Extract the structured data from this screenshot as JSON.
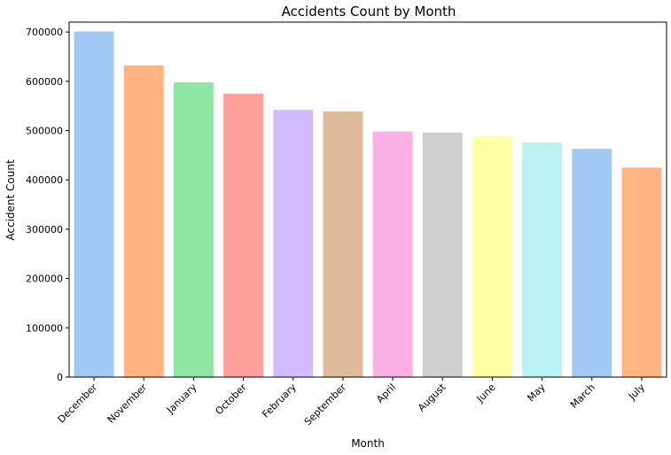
{
  "chart_data": {
    "type": "bar",
    "title": "Accidents Count by Month",
    "xlabel": "Month",
    "ylabel": "Accident Count",
    "categories": [
      "December",
      "November",
      "January",
      "October",
      "February",
      "September",
      "April",
      "August",
      "June",
      "May",
      "March",
      "July"
    ],
    "values": [
      701000,
      632000,
      598000,
      575000,
      542000,
      539000,
      498000,
      496000,
      488000,
      476000,
      463000,
      425000
    ],
    "colors": [
      "#a1c9f4",
      "#ffb482",
      "#8de5a1",
      "#ff9f9b",
      "#d0bbff",
      "#debb9b",
      "#fab0e4",
      "#cfcfcf",
      "#fffea3",
      "#b9f2f0",
      "#a1c9f4",
      "#ffb482"
    ],
    "ylim": [
      0,
      720000
    ],
    "yticks": [
      0,
      100000,
      200000,
      300000,
      400000,
      500000,
      600000,
      700000
    ],
    "grid": false,
    "legend": "none"
  }
}
